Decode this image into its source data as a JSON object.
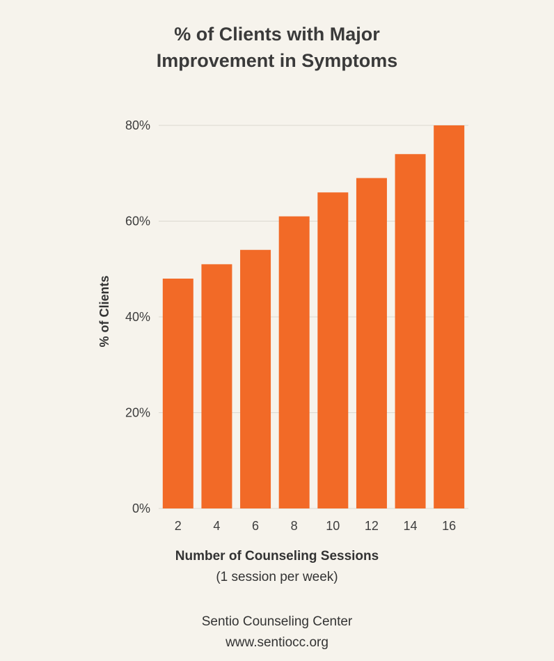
{
  "chart_data": {
    "type": "bar",
    "title_lines": [
      "% of Clients with Major",
      "Improvement in Symptoms"
    ],
    "categories": [
      "2",
      "4",
      "6",
      "8",
      "10",
      "12",
      "14",
      "16"
    ],
    "values": [
      48,
      51,
      54,
      61,
      66,
      69,
      74,
      80
    ],
    "ylabel": "% of Clients",
    "xlabel": "Number of Counseling Sessions",
    "xlabel_sub": "(1 session per week)",
    "yticks": [
      "0%",
      "20%",
      "40%",
      "60%",
      "80%"
    ],
    "ytick_values": [
      0,
      20,
      40,
      60,
      80
    ],
    "ylim": [
      0,
      80
    ],
    "grid": true,
    "bar_color": "#f26a27",
    "grid_color": "#dcd8d0"
  },
  "footer": {
    "org": "Sentio Counseling Center",
    "url": "www.sentiocc.org"
  }
}
